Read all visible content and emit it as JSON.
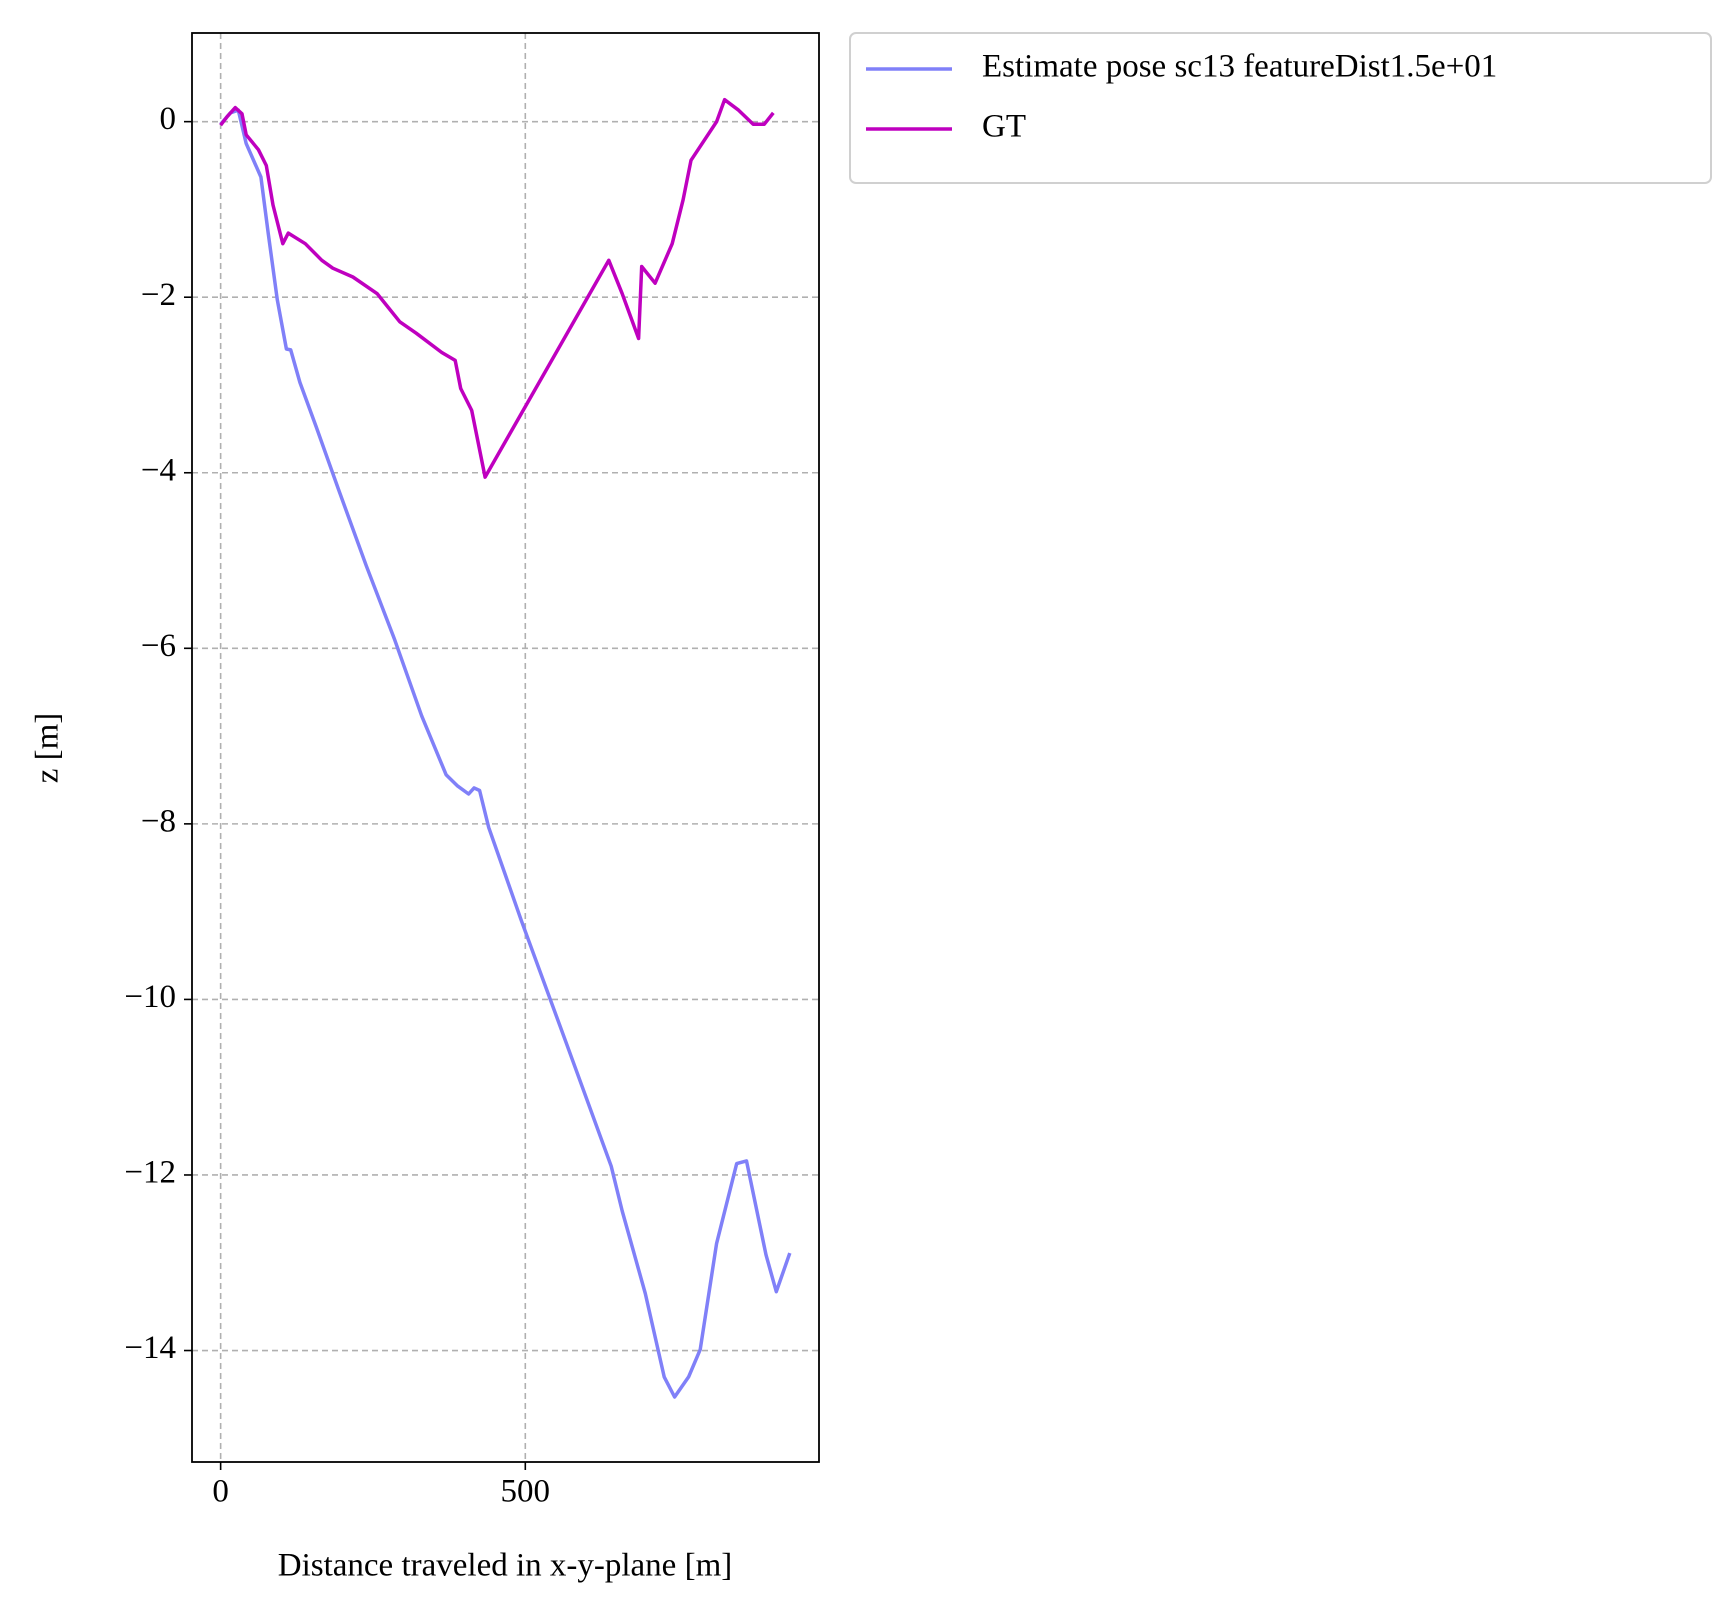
{
  "chart_data": {
    "type": "line",
    "x_label": "Distance traveled in x-y-plane [m]",
    "y_label": "z [m]",
    "xlim": [
      -47,
      982
    ],
    "xticks": [
      0,
      500
    ],
    "ylim": [
      -15.27,
      1.01
    ],
    "yticks": [
      {
        "value": 0,
        "label": "0"
      },
      {
        "value": -2,
        "label": "−2"
      },
      {
        "value": -4,
        "label": "−4"
      },
      {
        "value": -6,
        "label": "−6"
      },
      {
        "value": -8,
        "label": "−8"
      },
      {
        "value": -10,
        "label": "−10"
      },
      {
        "value": -12,
        "label": "−12"
      },
      {
        "value": -14,
        "label": "−14"
      }
    ],
    "grid": true,
    "legend": "outside upper right",
    "series": [
      {
        "name": "Estimate pose sc13 featureDist1.5e+01",
        "color": "#8080f8",
        "x": [
          0,
          16,
          29,
          42,
          66,
          78,
          93,
          108,
          115,
          130,
          157,
          193,
          239,
          285,
          330,
          370,
          389,
          407,
          416,
          425,
          440,
          494,
          568,
          641,
          659,
          697,
          728,
          745,
          768,
          787,
          814,
          847,
          863,
          895,
          912,
          934
        ],
        "values": [
          -0.03,
          0.1,
          0.13,
          -0.25,
          -0.63,
          -1.27,
          -2.03,
          -2.59,
          -2.6,
          -2.97,
          -3.48,
          -4.18,
          -5.06,
          -5.89,
          -6.77,
          -7.44,
          -7.57,
          -7.66,
          -7.59,
          -7.62,
          -8.04,
          -9.11,
          -10.51,
          -11.9,
          -12.41,
          -13.35,
          -14.3,
          -14.53,
          -14.3,
          -13.99,
          -12.78,
          -11.87,
          -11.84,
          -12.91,
          -13.33,
          -12.89
        ]
      },
      {
        "name": "GT",
        "color": "#bf00bf",
        "x": [
          0,
          11,
          24,
          35,
          42,
          62,
          75,
          86,
          102,
          111,
          139,
          166,
          184,
          217,
          257,
          294,
          321,
          363,
          385,
          394,
          412,
          434,
          637,
          659,
          686,
          691,
          713,
          741,
          759,
          772,
          814,
          827,
          850,
          874,
          892,
          907
        ],
        "values": [
          -0.04,
          0.06,
          0.16,
          0.09,
          -0.15,
          -0.32,
          -0.5,
          -0.95,
          -1.39,
          -1.27,
          -1.39,
          -1.58,
          -1.67,
          -1.77,
          -1.96,
          -2.28,
          -2.41,
          -2.63,
          -2.72,
          -3.04,
          -3.29,
          -4.05,
          -1.58,
          -1.96,
          -2.47,
          -1.65,
          -1.84,
          -1.39,
          -0.89,
          -0.44,
          0,
          0.25,
          0.13,
          -0.03,
          -0.03,
          0.1
        ]
      }
    ]
  }
}
